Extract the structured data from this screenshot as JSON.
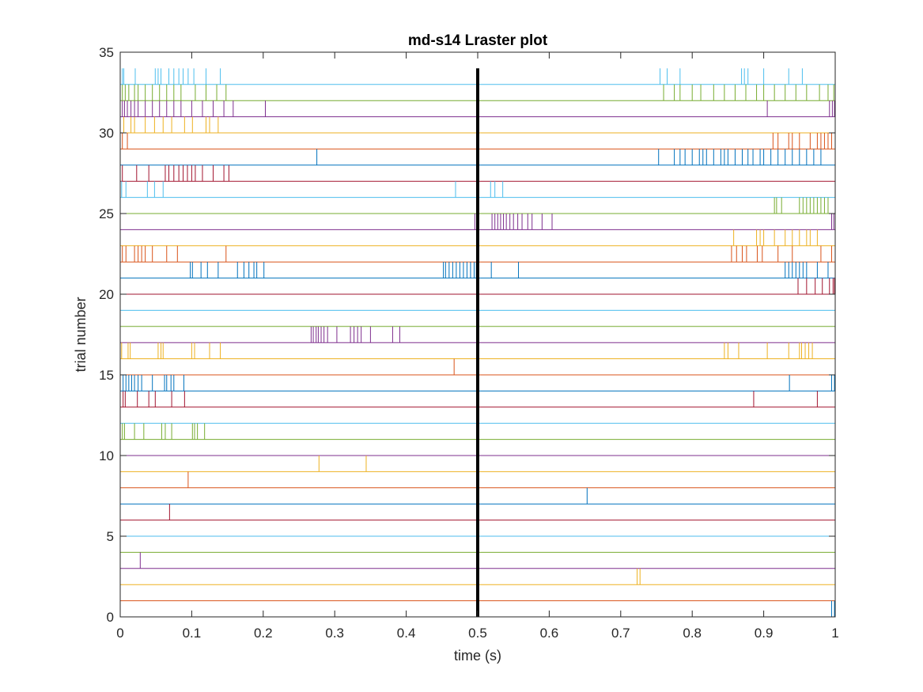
{
  "chart_data": {
    "type": "scatter",
    "subtype": "raster",
    "title": "md-s14 Lraster plot",
    "xlabel": "time (s)",
    "ylabel": "trial number",
    "xlim": [
      0,
      1
    ],
    "ylim": [
      0,
      35
    ],
    "xticks": [
      "0",
      "0.1",
      "0.2",
      "0.3",
      "0.4",
      "0.5",
      "0.6",
      "0.7",
      "0.8",
      "0.9",
      "1"
    ],
    "yticks": [
      "0",
      "5",
      "10",
      "15",
      "20",
      "25",
      "30",
      "35"
    ],
    "grid": false,
    "event_line": {
      "x": 0.5,
      "y_range": [
        0,
        34
      ],
      "color": "#000000"
    },
    "colors": [
      "#0072BD",
      "#D95319",
      "#EDB120",
      "#7E2F8E",
      "#77AC30",
      "#4DBEEE",
      "#A2142F"
    ],
    "trials": [
      {
        "trial": 1,
        "spikes": [
          0.995,
          0.999
        ]
      },
      {
        "trial": 2,
        "spikes": []
      },
      {
        "trial": 3,
        "spikes": [
          0.723,
          0.727
        ]
      },
      {
        "trial": 4,
        "spikes": [
          0.028
        ]
      },
      {
        "trial": 5,
        "spikes": []
      },
      {
        "trial": 6,
        "spikes": []
      },
      {
        "trial": 7,
        "spikes": [
          0.069
        ]
      },
      {
        "trial": 8,
        "spikes": [
          0.653
        ]
      },
      {
        "trial": 9,
        "spikes": [
          0.095
        ]
      },
      {
        "trial": 10,
        "spikes": [
          0.278,
          0.344
        ]
      },
      {
        "trial": 11,
        "spikes": []
      },
      {
        "trial": 12,
        "spikes": [
          0.003,
          0.006,
          0.02,
          0.033,
          0.058,
          0.063,
          0.072,
          0.101,
          0.104,
          0.108,
          0.118
        ]
      },
      {
        "trial": 13,
        "spikes": []
      },
      {
        "trial": 14,
        "spikes": [
          0.004,
          0.007,
          0.024,
          0.04,
          0.049,
          0.072,
          0.09,
          0.886,
          0.975
        ]
      },
      {
        "trial": 15,
        "spikes": [
          0.004,
          0.008,
          0.012,
          0.016,
          0.02,
          0.025,
          0.03,
          0.045,
          0.062,
          0.065,
          0.071,
          0.075,
          0.089,
          0.936,
          0.995,
          0.999
        ]
      },
      {
        "trial": 16,
        "spikes": [
          0.467
        ]
      },
      {
        "trial": 17,
        "spikes": [
          0.002,
          0.011,
          0.014,
          0.053,
          0.057,
          0.06,
          0.1,
          0.104,
          0.125,
          0.14,
          0.845,
          0.85,
          0.865,
          0.905,
          0.935,
          0.95,
          0.953,
          0.958,
          0.963,
          0.968
        ]
      },
      {
        "trial": 18,
        "spikes": [
          0.267,
          0.27,
          0.274,
          0.277,
          0.281,
          0.285,
          0.29,
          0.303,
          0.322,
          0.327,
          0.332,
          0.337,
          0.35,
          0.381,
          0.391
        ]
      },
      {
        "trial": 19,
        "spikes": []
      },
      {
        "trial": 20,
        "spikes": []
      },
      {
        "trial": 21,
        "spikes": [
          0.948,
          0.96,
          0.972,
          0.982,
          0.992,
          0.997,
          0.999
        ]
      },
      {
        "trial": 22,
        "spikes": [
          0.098,
          0.101,
          0.113,
          0.122,
          0.137,
          0.164,
          0.173,
          0.18,
          0.187,
          0.191,
          0.201,
          0.452,
          0.455,
          0.46,
          0.465,
          0.47,
          0.475,
          0.48,
          0.485,
          0.49,
          0.495,
          0.498,
          0.519,
          0.557,
          0.93,
          0.935,
          0.94,
          0.945,
          0.95,
          0.955,
          0.96,
          0.975,
          0.99
        ]
      },
      {
        "trial": 23,
        "spikes": [
          0.003,
          0.008,
          0.02,
          0.025,
          0.03,
          0.035,
          0.045,
          0.065,
          0.08,
          0.148,
          0.855,
          0.862,
          0.87,
          0.876,
          0.891,
          0.898,
          0.92,
          0.94,
          0.98,
          0.995
        ]
      },
      {
        "trial": 24,
        "spikes": [
          0.858,
          0.89,
          0.895,
          0.9,
          0.915,
          0.93,
          0.94,
          0.95,
          0.96,
          0.965,
          0.975
        ]
      },
      {
        "trial": 25,
        "spikes": [
          0.496,
          0.5,
          0.52,
          0.524,
          0.528,
          0.532,
          0.536,
          0.54,
          0.545,
          0.55,
          0.556,
          0.562,
          0.57,
          0.576,
          0.59,
          0.604,
          0.995,
          0.998
        ]
      },
      {
        "trial": 26,
        "spikes": [
          0.915,
          0.918,
          0.925,
          0.95,
          0.955,
          0.96,
          0.965,
          0.97,
          0.975,
          0.98,
          0.985,
          0.99
        ]
      },
      {
        "trial": 27,
        "spikes": [
          0.002,
          0.008,
          0.038,
          0.048,
          0.06,
          0.469,
          0.518,
          0.524,
          0.535
        ]
      },
      {
        "trial": 28,
        "spikes": [
          0.003,
          0.023,
          0.04,
          0.063,
          0.068,
          0.075,
          0.082,
          0.088,
          0.094,
          0.1,
          0.105,
          0.115,
          0.13,
          0.145,
          0.152
        ]
      },
      {
        "trial": 29,
        "spikes": [
          0.275,
          0.753,
          0.775,
          0.783,
          0.79,
          0.8,
          0.81,
          0.815,
          0.82,
          0.83,
          0.84,
          0.845,
          0.85,
          0.86,
          0.87,
          0.878,
          0.885,
          0.895,
          0.9,
          0.91,
          0.92,
          0.93,
          0.94,
          0.95,
          0.96,
          0.97,
          0.98
        ]
      },
      {
        "trial": 30,
        "spikes": [
          0.003,
          0.01,
          0.913,
          0.92,
          0.935,
          0.94,
          0.95,
          0.965,
          0.975,
          0.98,
          0.985,
          0.99,
          0.995
        ]
      },
      {
        "trial": 31,
        "spikes": [
          0.005,
          0.015,
          0.02,
          0.035,
          0.048,
          0.06,
          0.072,
          0.09,
          0.101,
          0.12,
          0.125,
          0.137
        ]
      },
      {
        "trial": 32,
        "spikes": [
          0.003,
          0.006,
          0.01,
          0.015,
          0.02,
          0.025,
          0.035,
          0.045,
          0.055,
          0.065,
          0.075,
          0.085,
          0.1,
          0.115,
          0.13,
          0.145,
          0.158,
          0.203,
          0.905,
          0.992,
          0.996,
          0.999
        ]
      },
      {
        "trial": 33,
        "spikes": [
          0.003,
          0.007,
          0.012,
          0.02,
          0.025,
          0.035,
          0.045,
          0.055,
          0.065,
          0.075,
          0.085,
          0.105,
          0.12,
          0.135,
          0.148,
          0.76,
          0.775,
          0.783,
          0.8,
          0.812,
          0.83,
          0.845,
          0.86,
          0.875,
          0.89,
          0.9,
          0.915,
          0.93,
          0.945,
          0.96,
          0.978,
          0.99,
          0.998
        ]
      },
      {
        "trial": 34,
        "spikes": [
          0.003,
          0.005,
          0.021,
          0.049,
          0.053,
          0.057,
          0.068,
          0.075,
          0.082,
          0.088,
          0.095,
          0.103,
          0.12,
          0.14,
          0.755,
          0.765,
          0.783,
          0.869,
          0.873,
          0.878,
          0.9,
          0.935,
          0.954
        ]
      }
    ]
  }
}
